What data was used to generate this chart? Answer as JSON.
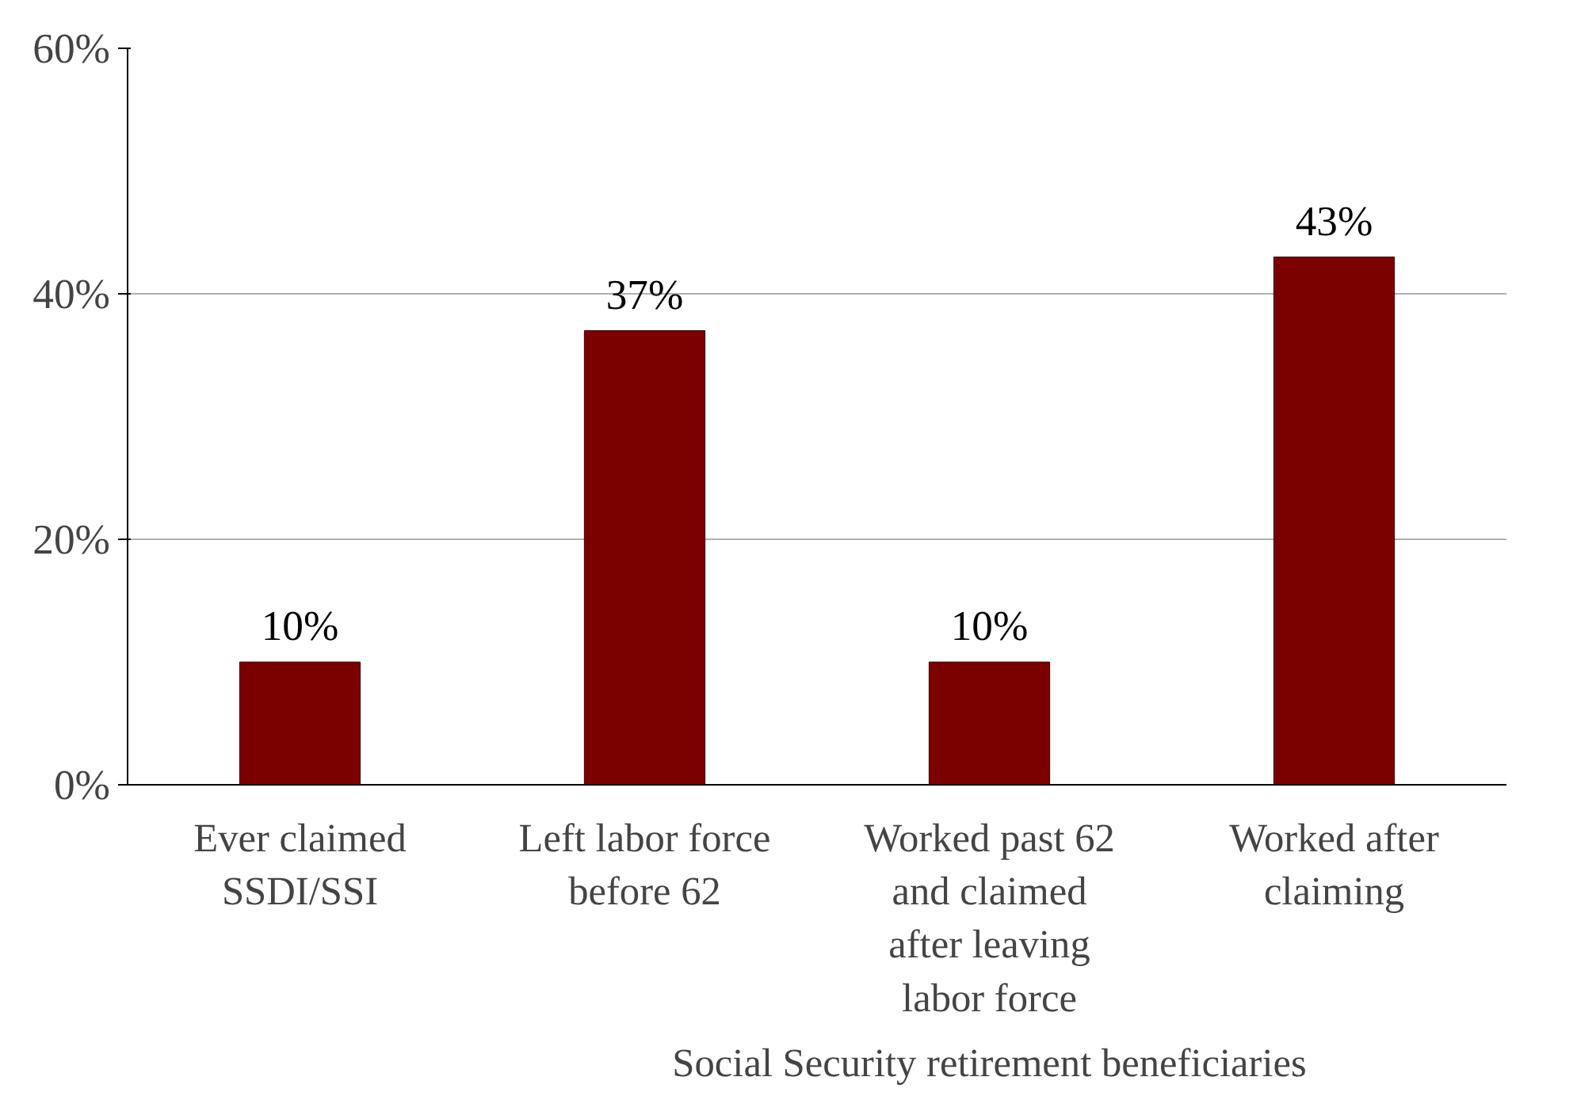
{
  "chart_data": {
    "type": "bar",
    "categories": [
      "Ever claimed SSDI/SSI",
      "Left labor force before 62",
      "Worked past 62 and claimed after leaving labor force",
      "Worked after claiming"
    ],
    "values": [
      10,
      37,
      10,
      43
    ],
    "value_labels": [
      "10%",
      "37%",
      "10%",
      "43%"
    ],
    "color": "#7b0000",
    "ylim": [
      0,
      60
    ],
    "yticks": [
      {
        "value": 0,
        "label": "0%"
      },
      {
        "value": 20,
        "label": "20%"
      },
      {
        "value": 40,
        "label": "40%"
      },
      {
        "value": 60,
        "label": "60%"
      }
    ],
    "grid": "y",
    "annotations": [
      "Social Security retirement beneficiaries"
    ]
  }
}
